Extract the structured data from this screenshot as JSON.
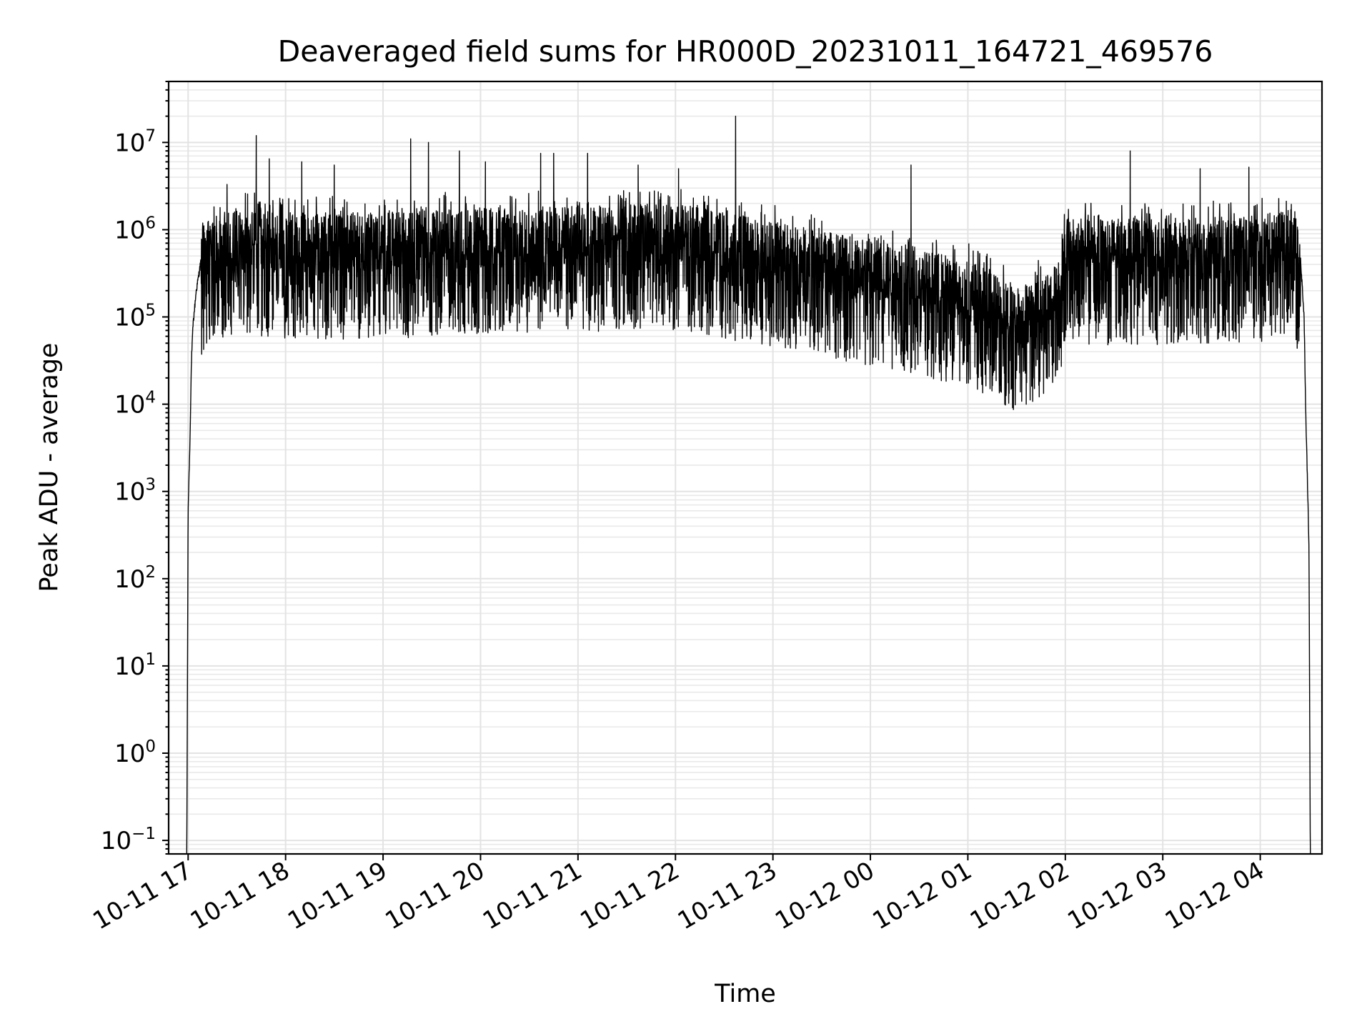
{
  "chart_data": {
    "type": "line",
    "title": "Deaveraged field sums for HR000D_20231011_164721_469576",
    "xlabel": "Time",
    "ylabel": "Peak ADU - average",
    "yscale": "log",
    "ylim": [
      0.07,
      50000000
    ],
    "xlim": [
      "2023-10-11 16:48",
      "2023-10-12 04:38"
    ],
    "grid": true,
    "legend": "none",
    "line_color": "#000000",
    "x_ticks": [
      {
        "t": "2023-10-11 17:00",
        "label": "10-11 17"
      },
      {
        "t": "2023-10-11 18:00",
        "label": "10-11 18"
      },
      {
        "t": "2023-10-11 19:00",
        "label": "10-11 19"
      },
      {
        "t": "2023-10-11 20:00",
        "label": "10-11 20"
      },
      {
        "t": "2023-10-11 21:00",
        "label": "10-11 21"
      },
      {
        "t": "2023-10-11 22:00",
        "label": "10-11 22"
      },
      {
        "t": "2023-10-11 23:00",
        "label": "10-11 23"
      },
      {
        "t": "2023-10-12 00:00",
        "label": "10-12 00"
      },
      {
        "t": "2023-10-12 01:00",
        "label": "10-12 01"
      },
      {
        "t": "2023-10-12 02:00",
        "label": "10-12 02"
      },
      {
        "t": "2023-10-12 03:00",
        "label": "10-12 03"
      },
      {
        "t": "2023-10-12 04:00",
        "label": "10-12 04"
      }
    ],
    "y_ticks": [
      {
        "exp": -1,
        "base": "10",
        "sup": "−1"
      },
      {
        "exp": 0,
        "base": "10",
        "sup": "0"
      },
      {
        "exp": 1,
        "base": "10",
        "sup": "1"
      },
      {
        "exp": 2,
        "base": "10",
        "sup": "2"
      },
      {
        "exp": 3,
        "base": "10",
        "sup": "3"
      },
      {
        "exp": 4,
        "base": "10",
        "sup": "4"
      },
      {
        "exp": 5,
        "base": "10",
        "sup": "5"
      },
      {
        "exp": 6,
        "base": "10",
        "sup": "6"
      },
      {
        "exp": 7,
        "base": "10",
        "sup": "7"
      }
    ],
    "series": [
      {
        "trend_points": [
          {
            "t": "2023-10-11 16:59",
            "y": 0.01
          },
          {
            "t": "2023-10-11 17:00",
            "y": 600
          },
          {
            "t": "2023-10-11 17:01",
            "y": 3000
          },
          {
            "t": "2023-10-11 17:02",
            "y": 30000
          },
          {
            "t": "2023-10-11 17:03",
            "y": 80000
          },
          {
            "t": "2023-10-11 17:05",
            "y": 200000
          },
          {
            "t": "2023-10-11 17:08",
            "y": 450000
          },
          {
            "t": "2023-10-11 17:15",
            "y": 650000
          },
          {
            "t": "2023-10-11 17:30",
            "y": 800000
          },
          {
            "t": "2023-10-11 18:00",
            "y": 700000
          },
          {
            "t": "2023-10-11 19:00",
            "y": 700000
          },
          {
            "t": "2023-10-11 20:00",
            "y": 800000
          },
          {
            "t": "2023-10-11 21:00",
            "y": 850000
          },
          {
            "t": "2023-10-11 22:00",
            "y": 900000
          },
          {
            "t": "2023-10-11 23:00",
            "y": 550000
          },
          {
            "t": "2023-10-12 00:00",
            "y": 350000
          },
          {
            "t": "2023-10-12 01:00",
            "y": 200000
          },
          {
            "t": "2023-10-12 01:30",
            "y": 100000
          },
          {
            "t": "2023-10-12 01:55",
            "y": 180000
          },
          {
            "t": "2023-10-12 02:00",
            "y": 600000
          },
          {
            "t": "2023-10-12 03:00",
            "y": 600000
          },
          {
            "t": "2023-10-12 04:00",
            "y": 650000
          },
          {
            "t": "2023-10-12 04:20",
            "y": 800000
          },
          {
            "t": "2023-10-12 04:25",
            "y": 400000
          },
          {
            "t": "2023-10-12 04:27",
            "y": 100000
          },
          {
            "t": "2023-10-12 04:28",
            "y": 8000
          },
          {
            "t": "2023-10-12 04:29",
            "y": 1500
          },
          {
            "t": "2023-10-12 04:30",
            "y": 200
          },
          {
            "t": "2023-10-12 04:31",
            "y": 0.01
          }
        ],
        "spikes": [
          {
            "t": "2023-10-11 17:24",
            "y": 3300000
          },
          {
            "t": "2023-10-11 17:42",
            "y": 12000000
          },
          {
            "t": "2023-10-11 17:50",
            "y": 6500000
          },
          {
            "t": "2023-10-11 18:10",
            "y": 6000000
          },
          {
            "t": "2023-10-11 18:30",
            "y": 5500000
          },
          {
            "t": "2023-10-11 19:17",
            "y": 11000000
          },
          {
            "t": "2023-10-11 19:28",
            "y": 10000000
          },
          {
            "t": "2023-10-11 19:47",
            "y": 8000000
          },
          {
            "t": "2023-10-11 20:03",
            "y": 6000000
          },
          {
            "t": "2023-10-11 20:37",
            "y": 7500000
          },
          {
            "t": "2023-10-11 20:45",
            "y": 7500000
          },
          {
            "t": "2023-10-11 21:06",
            "y": 7500000
          },
          {
            "t": "2023-10-11 21:37",
            "y": 5500000
          },
          {
            "t": "2023-10-11 22:02",
            "y": 5000000
          },
          {
            "t": "2023-10-11 22:37",
            "y": 20000000
          },
          {
            "t": "2023-10-12 00:25",
            "y": 5500000
          },
          {
            "t": "2023-10-12 02:40",
            "y": 8000000
          },
          {
            "t": "2023-10-12 03:23",
            "y": 5000000
          },
          {
            "t": "2023-10-12 03:53",
            "y": 5200000
          }
        ]
      }
    ]
  }
}
